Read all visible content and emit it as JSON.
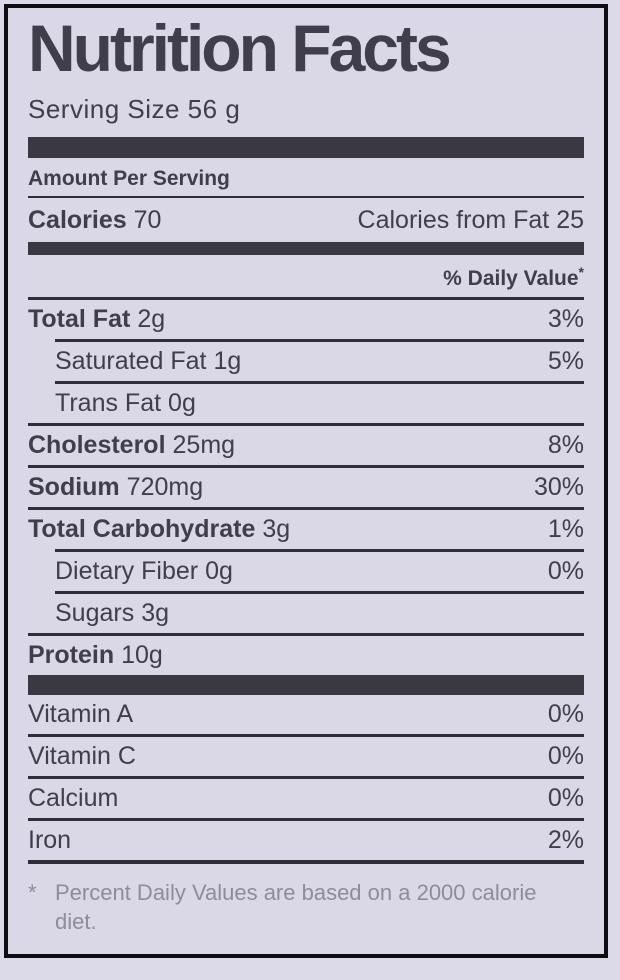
{
  "label": {
    "title": "Nutrition Facts",
    "serving_size": "Serving Size 56 g",
    "amount_per_serving": "Amount Per Serving",
    "calories_label": "Calories",
    "calories_value": "70",
    "calories_from_fat": "Calories from Fat 25",
    "daily_value_header": "% Daily Value",
    "daily_value_sup": "*",
    "footnote_star": "*",
    "footnote_text": "Percent Daily Values are based on a 2000 calorie diet."
  },
  "nutrients": [
    {
      "name": "Total Fat",
      "amount": "2g",
      "dv": "3%"
    },
    {
      "name": "Saturated Fat",
      "amount": "1g",
      "dv": "5%"
    },
    {
      "name": "Trans Fat",
      "amount": "0g",
      "dv": ""
    },
    {
      "name": "Cholesterol",
      "amount": "25mg",
      "dv": "8%"
    },
    {
      "name": "Sodium",
      "amount": "720mg",
      "dv": "30%"
    },
    {
      "name": "Total Carbohydrate",
      "amount": "3g",
      "dv": "1%"
    },
    {
      "name": "Dietary Fiber",
      "amount": "0g",
      "dv": "0%"
    },
    {
      "name": "Sugars",
      "amount": "3g",
      "dv": ""
    },
    {
      "name": "Protein",
      "amount": "10g",
      "dv": ""
    }
  ],
  "vitamins": [
    {
      "name": "Vitamin A",
      "dv": "0%"
    },
    {
      "name": "Vitamin C",
      "dv": "0%"
    },
    {
      "name": "Calcium",
      "dv": "0%"
    },
    {
      "name": "Iron",
      "dv": "2%"
    }
  ],
  "colors": {
    "bg": "#dcd9e8",
    "panel": "#dad7e6",
    "border": "#0e0d12",
    "line": "#302d39",
    "bar": "#3a3840",
    "text": "#403e4b",
    "muted": "#8e8b9b"
  }
}
